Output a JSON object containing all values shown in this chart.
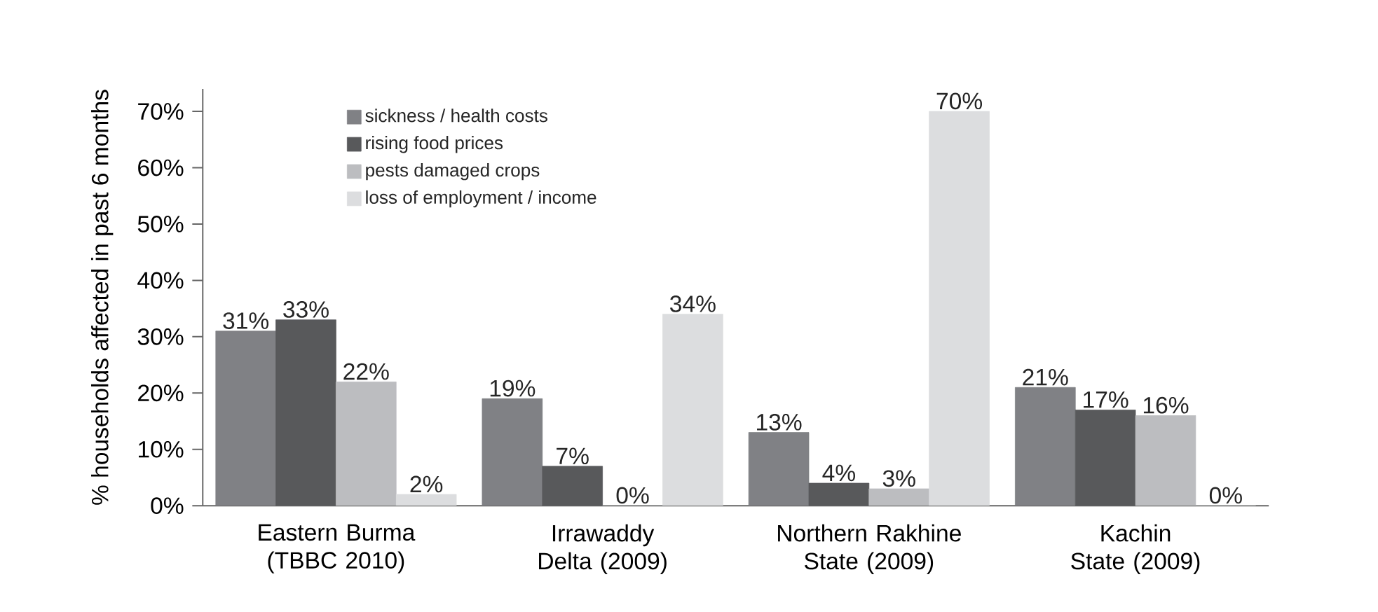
{
  "chart_data": {
    "type": "bar",
    "ylabel": "% households affected in past 6 months",
    "categories": [
      "Eastern Burma (TBBC 2010)",
      "Irrawaddy Delta (2009)",
      "Northern Rakhine State (2009)",
      "Kachin State (2009)"
    ],
    "series": [
      {
        "name": "sickness / health costs",
        "color": "#808185",
        "values": [
          31,
          19,
          13,
          21
        ],
        "value_labels": [
          "31%",
          "19%",
          "13%",
          "21%"
        ]
      },
      {
        "name": "rising food prices",
        "color": "#58595b",
        "values": [
          33,
          7,
          4,
          17
        ],
        "value_labels": [
          "33%",
          "7%",
          "4%",
          "17%"
        ]
      },
      {
        "name": "pests damaged crops",
        "color": "#bcbdc0",
        "values": [
          22,
          0,
          3,
          16
        ],
        "value_labels": [
          "22%",
          "0%",
          "3%",
          "16%"
        ]
      },
      {
        "name": "loss of employment / income",
        "color": "#dcdddf",
        "values": [
          2,
          34,
          70,
          0
        ],
        "value_labels": [
          "2%",
          "34%",
          "70%",
          "0%"
        ]
      }
    ],
    "ylim": [
      0,
      74
    ],
    "yticks": [
      {
        "value": 0,
        "label": "0%"
      },
      {
        "value": 10,
        "label": "10%"
      },
      {
        "value": 20,
        "label": "20%"
      },
      {
        "value": 30,
        "label": "30%"
      },
      {
        "value": 40,
        "label": "40%"
      },
      {
        "value": 50,
        "label": "50%"
      },
      {
        "value": 60,
        "label": "60%"
      },
      {
        "value": 70,
        "label": "70%"
      }
    ],
    "legend": "top left",
    "grid": false
  }
}
